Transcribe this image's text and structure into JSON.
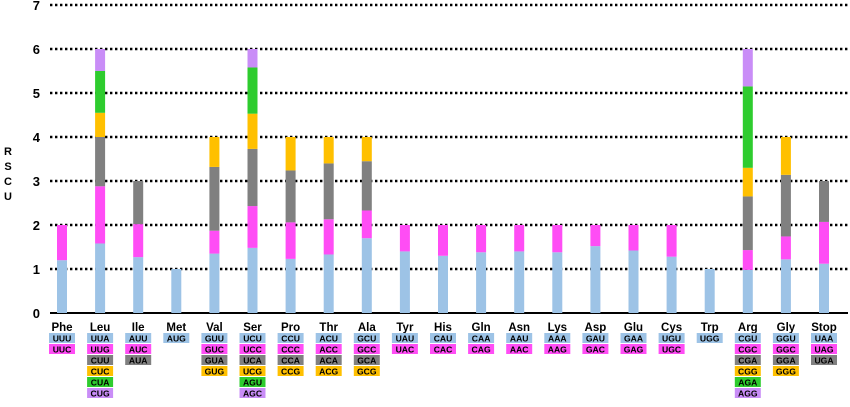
{
  "colors": {
    "blue": "#9dc3e6",
    "magenta": "#ff4df5",
    "gray": "#808080",
    "orange": "#ffc000",
    "green": "#2ecc2e",
    "violet": "#c98df7",
    "grid": "#000000",
    "text": "#000000"
  },
  "chart_data": {
    "type": "bar",
    "stacked": true,
    "title": "",
    "xlabel": "",
    "ylabel": "RSCU",
    "ylim": [
      0,
      7
    ],
    "yticks": [
      "0",
      "1",
      "2",
      "3",
      "4",
      "5",
      "6",
      "7"
    ],
    "grid": "horizontal dotted",
    "legend": "codon boxes below each amino acid label",
    "categories": [
      {
        "aa": "Phe",
        "segments": [
          {
            "codon": "UUU",
            "value": 1.2,
            "color": "blue"
          },
          {
            "codon": "UUC",
            "value": 0.8,
            "color": "magenta"
          }
        ]
      },
      {
        "aa": "Leu",
        "segments": [
          {
            "codon": "UUA",
            "value": 1.58,
            "color": "blue"
          },
          {
            "codon": "UUG",
            "value": 1.3,
            "color": "magenta"
          },
          {
            "codon": "CUU",
            "value": 1.12,
            "color": "gray"
          },
          {
            "codon": "CUC",
            "value": 0.55,
            "color": "orange"
          },
          {
            "codon": "CUA",
            "value": 0.95,
            "color": "green"
          },
          {
            "codon": "CUG",
            "value": 0.5,
            "color": "violet"
          }
        ]
      },
      {
        "aa": "Ile",
        "segments": [
          {
            "codon": "AUU",
            "value": 1.27,
            "color": "blue"
          },
          {
            "codon": "AUC",
            "value": 0.75,
            "color": "magenta"
          },
          {
            "codon": "AUA",
            "value": 0.98,
            "color": "gray"
          }
        ]
      },
      {
        "aa": "Met",
        "segments": [
          {
            "codon": "AUG",
            "value": 1.0,
            "color": "blue"
          }
        ]
      },
      {
        "aa": "Val",
        "segments": [
          {
            "codon": "GUU",
            "value": 1.35,
            "color": "blue"
          },
          {
            "codon": "GUC",
            "value": 0.52,
            "color": "magenta"
          },
          {
            "codon": "GUA",
            "value": 1.45,
            "color": "gray"
          },
          {
            "codon": "GUG",
            "value": 0.68,
            "color": "orange"
          }
        ]
      },
      {
        "aa": "Ser",
        "segments": [
          {
            "codon": "UCU",
            "value": 1.48,
            "color": "blue"
          },
          {
            "codon": "UCC",
            "value": 0.95,
            "color": "magenta"
          },
          {
            "codon": "UCA",
            "value": 1.3,
            "color": "gray"
          },
          {
            "codon": "UCG",
            "value": 0.8,
            "color": "orange"
          },
          {
            "codon": "AGU",
            "value": 1.05,
            "color": "green"
          },
          {
            "codon": "AGC",
            "value": 0.42,
            "color": "violet"
          }
        ]
      },
      {
        "aa": "Pro",
        "segments": [
          {
            "codon": "CCU",
            "value": 1.23,
            "color": "blue"
          },
          {
            "codon": "CCC",
            "value": 0.83,
            "color": "magenta"
          },
          {
            "codon": "CCA",
            "value": 1.18,
            "color": "gray"
          },
          {
            "codon": "CCG",
            "value": 0.76,
            "color": "orange"
          }
        ]
      },
      {
        "aa": "Thr",
        "segments": [
          {
            "codon": "ACU",
            "value": 1.33,
            "color": "blue"
          },
          {
            "codon": "ACC",
            "value": 0.8,
            "color": "magenta"
          },
          {
            "codon": "ACA",
            "value": 1.27,
            "color": "gray"
          },
          {
            "codon": "ACG",
            "value": 0.6,
            "color": "orange"
          }
        ]
      },
      {
        "aa": "Ala",
        "segments": [
          {
            "codon": "GCU",
            "value": 1.7,
            "color": "blue"
          },
          {
            "codon": "GCC",
            "value": 0.63,
            "color": "magenta"
          },
          {
            "codon": "GCA",
            "value": 1.12,
            "color": "gray"
          },
          {
            "codon": "GCG",
            "value": 0.55,
            "color": "orange"
          }
        ]
      },
      {
        "aa": "Tyr",
        "segments": [
          {
            "codon": "UAU",
            "value": 1.4,
            "color": "blue"
          },
          {
            "codon": "UAC",
            "value": 0.6,
            "color": "magenta"
          }
        ]
      },
      {
        "aa": "His",
        "segments": [
          {
            "codon": "CAU",
            "value": 1.3,
            "color": "blue"
          },
          {
            "codon": "CAC",
            "value": 0.7,
            "color": "magenta"
          }
        ]
      },
      {
        "aa": "Gln",
        "segments": [
          {
            "codon": "CAA",
            "value": 1.38,
            "color": "blue"
          },
          {
            "codon": "CAG",
            "value": 0.62,
            "color": "magenta"
          }
        ]
      },
      {
        "aa": "Asn",
        "segments": [
          {
            "codon": "AAU",
            "value": 1.4,
            "color": "blue"
          },
          {
            "codon": "AAC",
            "value": 0.6,
            "color": "magenta"
          }
        ]
      },
      {
        "aa": "Lys",
        "segments": [
          {
            "codon": "AAA",
            "value": 1.38,
            "color": "blue"
          },
          {
            "codon": "AAG",
            "value": 0.62,
            "color": "magenta"
          }
        ]
      },
      {
        "aa": "Asp",
        "segments": [
          {
            "codon": "GAU",
            "value": 1.52,
            "color": "blue"
          },
          {
            "codon": "GAC",
            "value": 0.48,
            "color": "magenta"
          }
        ]
      },
      {
        "aa": "Glu",
        "segments": [
          {
            "codon": "GAA",
            "value": 1.42,
            "color": "blue"
          },
          {
            "codon": "GAG",
            "value": 0.58,
            "color": "magenta"
          }
        ]
      },
      {
        "aa": "Cys",
        "segments": [
          {
            "codon": "UGU",
            "value": 1.28,
            "color": "blue"
          },
          {
            "codon": "UGC",
            "value": 0.72,
            "color": "magenta"
          }
        ]
      },
      {
        "aa": "Trp",
        "segments": [
          {
            "codon": "UGG",
            "value": 1.0,
            "color": "blue"
          }
        ]
      },
      {
        "aa": "Arg",
        "segments": [
          {
            "codon": "CGU",
            "value": 0.98,
            "color": "blue"
          },
          {
            "codon": "CGC",
            "value": 0.45,
            "color": "magenta"
          },
          {
            "codon": "CGA",
            "value": 1.22,
            "color": "gray"
          },
          {
            "codon": "CGG",
            "value": 0.65,
            "color": "orange"
          },
          {
            "codon": "AGA",
            "value": 1.85,
            "color": "green"
          },
          {
            "codon": "AGG",
            "value": 0.85,
            "color": "violet"
          }
        ]
      },
      {
        "aa": "Gly",
        "segments": [
          {
            "codon": "GGU",
            "value": 1.22,
            "color": "blue"
          },
          {
            "codon": "GGC",
            "value": 0.52,
            "color": "magenta"
          },
          {
            "codon": "GGA",
            "value": 1.4,
            "color": "gray"
          },
          {
            "codon": "GGG",
            "value": 0.86,
            "color": "orange"
          }
        ]
      },
      {
        "aa": "Stop",
        "segments": [
          {
            "codon": "UAA",
            "value": 1.12,
            "color": "blue"
          },
          {
            "codon": "UAG",
            "value": 0.95,
            "color": "magenta"
          },
          {
            "codon": "UGA",
            "value": 0.93,
            "color": "gray"
          }
        ]
      }
    ]
  }
}
